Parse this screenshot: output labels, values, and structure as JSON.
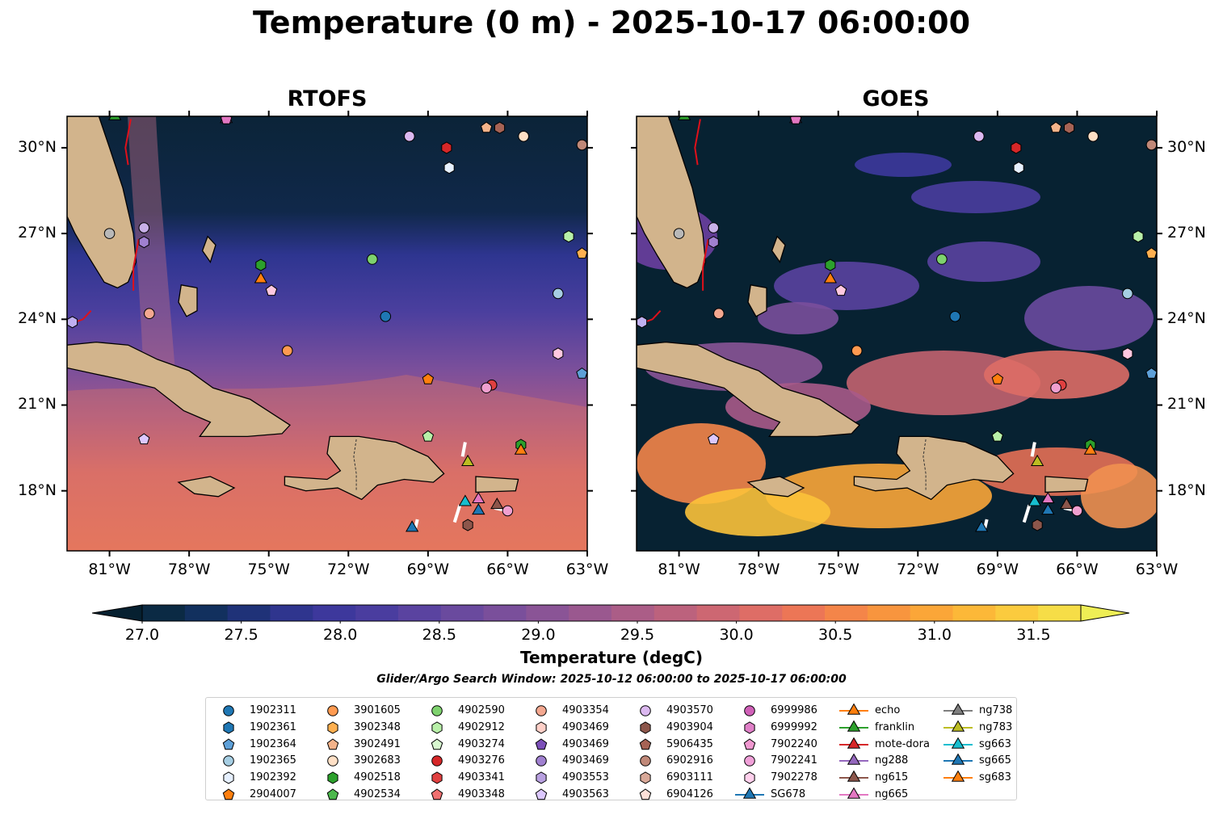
{
  "title": "Temperature (0 m) - 2025-10-17 06:00:00",
  "panels": [
    {
      "title": "RTOFS",
      "id": "rtofs"
    },
    {
      "title": "GOES",
      "id": "goes"
    }
  ],
  "map": {
    "lon_range": [
      -82.6,
      -63.0
    ],
    "lat_range": [
      15.9,
      31.1
    ],
    "lon_ticks": [
      "81°W",
      "78°W",
      "75°W",
      "72°W",
      "69°W",
      "66°W",
      "63°W"
    ],
    "lon_tick_values": [
      -81,
      -78,
      -75,
      -72,
      -69,
      -66,
      -63
    ],
    "lat_ticks": [
      "18°N",
      "21°N",
      "24°N",
      "27°N",
      "30°N"
    ],
    "lat_tick_values": [
      18,
      21,
      24,
      27,
      30
    ]
  },
  "colorbar": {
    "label": "Temperature (degC)",
    "ticks": [
      "27.0",
      "27.5",
      "28.0",
      "28.5",
      "29.0",
      "29.5",
      "30.0",
      "30.5",
      "31.0",
      "31.5"
    ],
    "vmin": 26.75,
    "vmax": 31.75,
    "colors": [
      "#062030",
      "#0b2a44",
      "#12305e",
      "#1f3278",
      "#2f358e",
      "#3d389c",
      "#4a3d9f",
      "#5a43a0",
      "#6a4a9e",
      "#7a4f9b",
      "#8a5496",
      "#9a588f",
      "#ab5d87",
      "#bc627d",
      "#cd6772",
      "#de6d66",
      "#ec7656",
      "#f48549",
      "#f8953e",
      "#fba638",
      "#fcb838",
      "#fbcb3e",
      "#f6dd47",
      "#eeee55"
    ]
  },
  "window_note": "Glider/Argo Search Window: 2025-10-12 06:00:00 to 2025-10-17 06:00:00",
  "land_color": "#d2b48c",
  "markers": [
    {
      "lon": -80.8,
      "lat": 31.1,
      "shape": "triangle",
      "color": "#2ca02c"
    },
    {
      "lon": -76.6,
      "lat": 31.0,
      "shape": "triangle",
      "color": "#9467bd"
    },
    {
      "lon": -76.6,
      "lat": 31.0,
      "shape": "pentagon",
      "color": "#e377c2"
    },
    {
      "lon": -69.7,
      "lat": 30.4,
      "shape": "circle",
      "color": "#dbb8f0"
    },
    {
      "lon": -68.3,
      "lat": 30.0,
      "shape": "hexagon",
      "color": "#d62728"
    },
    {
      "lon": -66.8,
      "lat": 30.7,
      "shape": "pentagon",
      "color": "#f4b38a"
    },
    {
      "lon": -66.3,
      "lat": 30.7,
      "shape": "hexagon",
      "color": "#a66355"
    },
    {
      "lon": -65.4,
      "lat": 30.4,
      "shape": "circle",
      "color": "#ffe0c6"
    },
    {
      "lon": -63.2,
      "lat": 30.1,
      "shape": "circle",
      "color": "#c08878"
    },
    {
      "lon": -68.2,
      "lat": 29.3,
      "shape": "hexagon",
      "color": "#e6f0ff"
    },
    {
      "lon": -81.0,
      "lat": 27.0,
      "shape": "circle",
      "color": "#b8b8b8"
    },
    {
      "lon": -79.7,
      "lat": 27.2,
      "shape": "circle",
      "color": "#c8b0e8"
    },
    {
      "lon": -79.7,
      "lat": 26.7,
      "shape": "hexagon",
      "color": "#a080d0"
    },
    {
      "lon": -71.1,
      "lat": 26.1,
      "shape": "circle",
      "color": "#7ed26e"
    },
    {
      "lon": -63.7,
      "lat": 26.9,
      "shape": "hexagon",
      "color": "#b8f0a8"
    },
    {
      "lon": -63.2,
      "lat": 26.3,
      "shape": "pentagon",
      "color": "#ffb050"
    },
    {
      "lon": -75.3,
      "lat": 25.9,
      "shape": "hexagon",
      "color": "#2ca02c"
    },
    {
      "lon": -75.3,
      "lat": 25.4,
      "shape": "triangle",
      "color": "#ff7f0e"
    },
    {
      "lon": -74.9,
      "lat": 25.0,
      "shape": "pentagon",
      "color": "#ffc8e0"
    },
    {
      "lon": -64.1,
      "lat": 24.9,
      "shape": "circle",
      "color": "#a6cee3"
    },
    {
      "lon": -79.5,
      "lat": 24.2,
      "shape": "circle",
      "color": "#f4a890"
    },
    {
      "lon": -70.6,
      "lat": 24.1,
      "shape": "circle",
      "color": "#1f77b4"
    },
    {
      "lon": -82.4,
      "lat": 23.9,
      "shape": "hexagon",
      "color": "#c0b0f0"
    },
    {
      "lon": -74.3,
      "lat": 22.9,
      "shape": "circle",
      "color": "#ff9a50"
    },
    {
      "lon": -64.1,
      "lat": 22.8,
      "shape": "hexagon",
      "color": "#ffc8e0"
    },
    {
      "lon": -63.2,
      "lat": 22.1,
      "shape": "pentagon",
      "color": "#5ea0d8"
    },
    {
      "lon": -69.0,
      "lat": 21.9,
      "shape": "pentagon",
      "color": "#ff7f0e"
    },
    {
      "lon": -66.6,
      "lat": 21.7,
      "shape": "circle",
      "color": "#e04040"
    },
    {
      "lon": -66.8,
      "lat": 21.6,
      "shape": "circle",
      "color": "#f0a0d0"
    },
    {
      "lon": -79.7,
      "lat": 19.8,
      "shape": "pentagon",
      "color": "#dcc8ff"
    },
    {
      "lon": -69.0,
      "lat": 19.9,
      "shape": "pentagon",
      "color": "#b8f0a8"
    },
    {
      "lon": -65.5,
      "lat": 19.6,
      "shape": "hexagon",
      "color": "#2ca02c"
    },
    {
      "lon": -65.5,
      "lat": 19.4,
      "shape": "triangle",
      "color": "#ff7f0e"
    },
    {
      "lon": -67.5,
      "lat": 19.0,
      "shape": "triangle",
      "color": "#bcbd22"
    },
    {
      "lon": -67.6,
      "lat": 17.6,
      "shape": "triangle",
      "color": "#17becf"
    },
    {
      "lon": -67.1,
      "lat": 17.7,
      "shape": "triangle",
      "color": "#e377c2"
    },
    {
      "lon": -66.4,
      "lat": 17.5,
      "shape": "triangle",
      "color": "#8c564b"
    },
    {
      "lon": -67.1,
      "lat": 17.3,
      "shape": "triangle",
      "color": "#1f77b4"
    },
    {
      "lon": -66.0,
      "lat": 17.3,
      "shape": "circle",
      "color": "#f0a0d0"
    },
    {
      "lon": -67.5,
      "lat": 16.8,
      "shape": "hexagon",
      "color": "#8c564b"
    },
    {
      "lon": -69.6,
      "lat": 16.7,
      "shape": "triangle",
      "color": "#1f77b4"
    }
  ],
  "legend": [
    {
      "label": "1902311",
      "shape": "circle",
      "color": "#1f77b4"
    },
    {
      "label": "1902361",
      "shape": "hexagon",
      "color": "#1f77b4"
    },
    {
      "label": "1902364",
      "shape": "pentagon",
      "color": "#5ea0d8"
    },
    {
      "label": "1902365",
      "shape": "circle",
      "color": "#a6cee3"
    },
    {
      "label": "1902392",
      "shape": "hexagon",
      "color": "#e6f0ff"
    },
    {
      "label": "2904007",
      "shape": "pentagon",
      "color": "#ff7f0e"
    },
    {
      "label": "3901605",
      "shape": "circle",
      "color": "#ff9a50"
    },
    {
      "label": "3902348",
      "shape": "hexagon",
      "color": "#ffb050"
    },
    {
      "label": "3902491",
      "shape": "pentagon",
      "color": "#f4b38a"
    },
    {
      "label": "3902683",
      "shape": "circle",
      "color": "#ffe0c6"
    },
    {
      "label": "4902518",
      "shape": "hexagon",
      "color": "#2ca02c"
    },
    {
      "label": "4902534",
      "shape": "pentagon",
      "color": "#4cb84c"
    },
    {
      "label": "4902590",
      "shape": "circle",
      "color": "#7ed26e"
    },
    {
      "label": "4902912",
      "shape": "hexagon",
      "color": "#b8f0a8"
    },
    {
      "label": "4903274",
      "shape": "pentagon",
      "color": "#d8f8d0"
    },
    {
      "label": "4903276",
      "shape": "circle",
      "color": "#d62728"
    },
    {
      "label": "4903341",
      "shape": "hexagon",
      "color": "#e04040"
    },
    {
      "label": "4903348",
      "shape": "pentagon",
      "color": "#f07070"
    },
    {
      "label": "4903354",
      "shape": "circle",
      "color": "#f4a890"
    },
    {
      "label": "4903469",
      "shape": "hexagon",
      "color": "#ffd0c8"
    },
    {
      "label": "4903469",
      "shape": "pentagon",
      "color": "#7b4fb8"
    },
    {
      "label": "4903469",
      "shape": "circle",
      "color": "#a080d0"
    },
    {
      "label": "4903553",
      "shape": "hexagon",
      "color": "#b8a0e0"
    },
    {
      "label": "4903563",
      "shape": "pentagon",
      "color": "#dcc8ff"
    },
    {
      "label": "4903570",
      "shape": "circle",
      "color": "#dbb8f0"
    },
    {
      "label": "4903904",
      "shape": "hexagon",
      "color": "#8c564b"
    },
    {
      "label": "5906435",
      "shape": "pentagon",
      "color": "#a66355"
    },
    {
      "label": "6902916",
      "shape": "circle",
      "color": "#c08878"
    },
    {
      "label": "6903111",
      "shape": "hexagon",
      "color": "#d8a898"
    },
    {
      "label": "6904126",
      "shape": "pentagon",
      "color": "#ffe0d8"
    },
    {
      "label": "6999986",
      "shape": "circle",
      "color": "#d060b8"
    },
    {
      "label": "6999992",
      "shape": "hexagon",
      "color": "#e080c8"
    },
    {
      "label": "7902240",
      "shape": "pentagon",
      "color": "#f098d0"
    },
    {
      "label": "7902241",
      "shape": "circle",
      "color": "#f0a0d8"
    },
    {
      "label": "7902278",
      "shape": "hexagon",
      "color": "#ffd0ec"
    },
    {
      "label": "SG678",
      "shape": "triangle",
      "color": "#1f77b4",
      "line": true
    },
    {
      "label": "echo",
      "shape": "triangle",
      "color": "#ff7f0e",
      "line": true
    },
    {
      "label": "franklin",
      "shape": "triangle",
      "color": "#2ca02c",
      "line": true
    },
    {
      "label": "mote-dora",
      "shape": "triangle",
      "color": "#d62728",
      "line": true
    },
    {
      "label": "ng288",
      "shape": "triangle",
      "color": "#9467bd",
      "line": true
    },
    {
      "label": "ng615",
      "shape": "triangle",
      "color": "#8c564b",
      "line": true
    },
    {
      "label": "ng665",
      "shape": "triangle",
      "color": "#e377c2",
      "line": true
    },
    {
      "label": "ng738",
      "shape": "triangle",
      "color": "#7f7f7f",
      "line": true
    },
    {
      "label": "ng783",
      "shape": "triangle",
      "color": "#bcbd22",
      "line": true
    },
    {
      "label": "sg663",
      "shape": "triangle",
      "color": "#17becf",
      "line": true
    },
    {
      "label": "sg665",
      "shape": "triangle",
      "color": "#1f77b4",
      "line": true
    },
    {
      "label": "sg683",
      "shape": "triangle",
      "color": "#ff7f0e",
      "line": true
    }
  ]
}
